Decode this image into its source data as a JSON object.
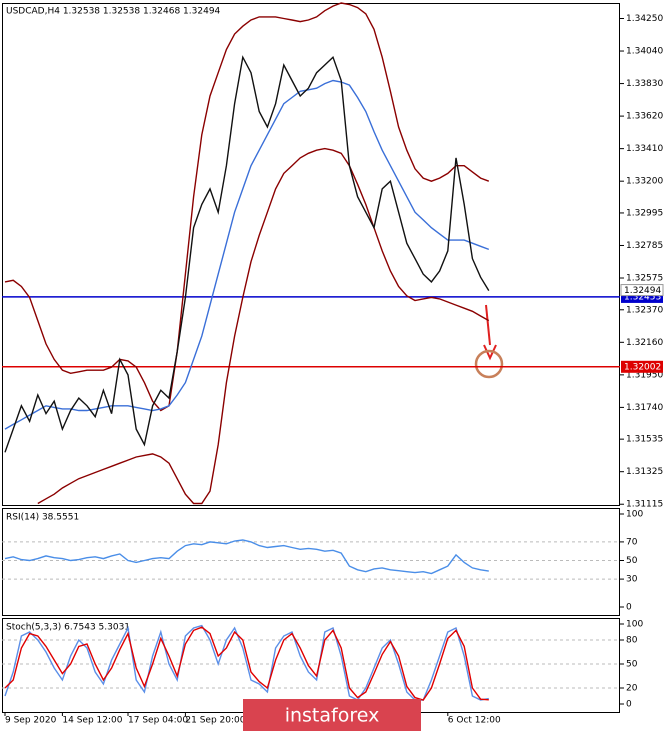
{
  "chart_data": [
    {
      "type": "line",
      "title": "USDCAD,H4  1.32538 1.32538 1.32468 1.32494",
      "ylim": [
        1.3111,
        1.3435
      ],
      "yticks": [
        {
          "value": 1.3425,
          "label": "1.34250"
        },
        {
          "value": 1.3404,
          "label": "1.34040"
        },
        {
          "value": 1.3383,
          "label": "1.33830"
        },
        {
          "value": 1.3362,
          "label": "1.33620"
        },
        {
          "value": 1.3341,
          "label": "1.33410"
        },
        {
          "value": 1.332,
          "label": "1.33200"
        },
        1.32995,
        1.32785,
        1.32575,
        {
          "value": 1.3237,
          "label": "1.32370"
        },
        {
          "value": 1.3216,
          "label": "1.32160"
        },
        {
          "value": 1.3195,
          "label": "1.31950"
        },
        {
          "value": 1.3174,
          "label": "1.31740"
        },
        1.31535,
        1.31325,
        1.31115
      ],
      "levels": [
        {
          "value": 1.32453,
          "color": "#0000cc"
        },
        {
          "value": 1.32002,
          "color": "#dd0000"
        }
      ],
      "last_price": 1.32494,
      "series": [
        {
          "color": "#8b0000",
          "values": [
            1.3255,
            1.3256,
            1.3252,
            1.3245,
            1.323,
            1.3215,
            1.3205,
            1.3198,
            1.3196,
            1.3197,
            1.3198,
            1.3198,
            1.3198,
            1.32,
            1.3205,
            1.3204,
            1.32,
            1.319,
            1.3178,
            1.3172,
            1.3175,
            1.321,
            1.326,
            1.331,
            1.335,
            1.3375,
            1.339,
            1.3405,
            1.3415,
            1.342,
            1.3424,
            1.3426,
            1.3426,
            1.3426,
            1.3425,
            1.3424,
            1.3423,
            1.3424,
            1.3426,
            1.343,
            1.3433,
            1.3435,
            1.3434,
            1.3432,
            1.3428,
            1.3418,
            1.34,
            1.3378,
            1.3355,
            1.334,
            1.3328,
            1.3322,
            1.332,
            1.3322,
            1.3325,
            1.333,
            1.333,
            1.3326,
            1.3322,
            1.332
          ]
        },
        {
          "color": "#8b0000",
          "values": [
            null,
            null,
            null,
            null,
            1.3112,
            1.3115,
            1.3118,
            1.3122,
            1.3125,
            1.3128,
            1.313,
            1.3132,
            1.3134,
            1.3136,
            1.3138,
            1.314,
            1.3142,
            1.3143,
            1.3144,
            1.3142,
            1.3138,
            1.3128,
            1.3118,
            1.3112,
            1.3112,
            1.312,
            1.315,
            1.319,
            1.322,
            1.3245,
            1.3268,
            1.3285,
            1.33,
            1.3315,
            1.3325,
            1.333,
            1.3335,
            1.3338,
            1.334,
            1.3341,
            1.334,
            1.3338,
            1.333,
            1.3318,
            1.3305,
            1.329,
            1.3275,
            1.3262,
            1.3252,
            1.3246,
            1.3243,
            1.3244,
            1.3245,
            1.3244,
            1.3242,
            1.324,
            1.3238,
            1.3236,
            1.3233,
            1.323
          ]
        },
        {
          "color": "#3a6fd8",
          "values": [
            1.316,
            1.3163,
            1.3166,
            1.3169,
            1.3172,
            1.3175,
            1.3174,
            1.3173,
            1.3173,
            1.3172,
            1.3172,
            1.3173,
            1.3174,
            1.3175,
            1.3175,
            1.3175,
            1.3174,
            1.3173,
            1.3172,
            1.3173,
            1.3175,
            1.3182,
            1.319,
            1.3205,
            1.322,
            1.324,
            1.326,
            1.328,
            1.33,
            1.3315,
            1.333,
            1.334,
            1.335,
            1.336,
            1.337,
            1.3374,
            1.3378,
            1.3379,
            1.338,
            1.3383,
            1.3385,
            1.3384,
            1.3382,
            1.3374,
            1.3365,
            1.3352,
            1.334,
            1.333,
            1.332,
            1.331,
            1.33,
            1.3295,
            1.329,
            1.3286,
            1.3282,
            1.3282,
            1.3282,
            1.328,
            1.3278,
            1.3276
          ]
        },
        {
          "color": "#111111",
          "values": [
            1.3145,
            1.316,
            1.3175,
            1.3165,
            1.3182,
            1.317,
            1.3178,
            1.316,
            1.3172,
            1.318,
            1.3175,
            1.3168,
            1.3185,
            1.317,
            1.3205,
            1.3195,
            1.316,
            1.315,
            1.3175,
            1.3185,
            1.318,
            1.321,
            1.3245,
            1.329,
            1.3305,
            1.3315,
            1.33,
            1.333,
            1.337,
            1.34,
            1.339,
            1.3365,
            1.3355,
            1.337,
            1.3395,
            1.3385,
            1.3375,
            1.338,
            1.339,
            1.3395,
            1.34,
            1.3385,
            1.333,
            1.331,
            1.33,
            1.329,
            1.3315,
            1.332,
            1.33,
            1.328,
            1.327,
            1.326,
            1.3255,
            1.3262,
            1.3275,
            1.3335,
            1.3305,
            1.327,
            1.3258,
            1.32494
          ]
        }
      ]
    },
    {
      "type": "line",
      "title": "RSI(14) 38.5551",
      "ylim": [
        0,
        100
      ],
      "yticks": [
        0,
        30,
        50,
        70,
        100
      ],
      "series": [
        {
          "color": "#4a8ee8",
          "values": [
            52,
            54,
            51,
            50,
            52,
            55,
            53,
            52,
            50,
            51,
            53,
            54,
            52,
            55,
            57,
            50,
            48,
            50,
            52,
            53,
            52,
            60,
            66,
            68,
            67,
            70,
            69,
            68,
            71,
            72,
            70,
            66,
            64,
            65,
            66,
            64,
            62,
            63,
            62,
            60,
            61,
            58,
            44,
            40,
            38,
            41,
            42,
            40,
            39,
            38,
            37,
            38,
            36,
            40,
            44,
            56,
            48,
            42,
            40,
            38.5551
          ]
        }
      ]
    },
    {
      "type": "line",
      "title": "Stoch(5,3,3) 6.7543 5.3031",
      "ylim": [
        0,
        100
      ],
      "yticks": [
        0,
        20,
        50,
        80,
        100
      ],
      "categories": [
        "9 Sep 2020",
        null,
        null,
        null,
        null,
        null,
        null,
        "14 Sep 12:00",
        null,
        null,
        null,
        null,
        null,
        null,
        null,
        "17 Sep 04:00",
        null,
        null,
        null,
        null,
        null,
        null,
        "21 Sep 20:00",
        null,
        null,
        null,
        null,
        null,
        null,
        null,
        null,
        null,
        null,
        null,
        null,
        null,
        null,
        null,
        null,
        null,
        null,
        null,
        null,
        null,
        null,
        null,
        null,
        null,
        null,
        null,
        null,
        null,
        null,
        null,
        "6 Oct 12:00",
        null,
        null,
        null,
        null,
        null
      ],
      "series": [
        {
          "color": "#5b8fe8",
          "values": [
            10,
            40,
            85,
            90,
            80,
            65,
            45,
            30,
            60,
            80,
            70,
            40,
            25,
            55,
            75,
            95,
            30,
            15,
            60,
            90,
            50,
            30,
            85,
            95,
            98,
            80,
            50,
            80,
            95,
            70,
            30,
            25,
            15,
            70,
            85,
            90,
            60,
            40,
            30,
            90,
            95,
            60,
            10,
            5,
            20,
            45,
            70,
            80,
            50,
            15,
            5,
            5,
            30,
            60,
            90,
            95,
            60,
            10,
            5,
            6.7543
          ]
        },
        {
          "color": "#e00000",
          "values": [
            20,
            30,
            70,
            88,
            85,
            72,
            55,
            38,
            50,
            72,
            75,
            50,
            30,
            45,
            68,
            88,
            45,
            22,
            50,
            82,
            60,
            35,
            75,
            92,
            96,
            88,
            60,
            70,
            90,
            80,
            40,
            28,
            20,
            55,
            80,
            88,
            70,
            48,
            35,
            80,
            92,
            70,
            20,
            8,
            15,
            38,
            62,
            78,
            60,
            22,
            8,
            5,
            20,
            50,
            82,
            92,
            72,
            20,
            6,
            5.3031
          ]
        }
      ]
    }
  ],
  "watermark": "instaforex"
}
